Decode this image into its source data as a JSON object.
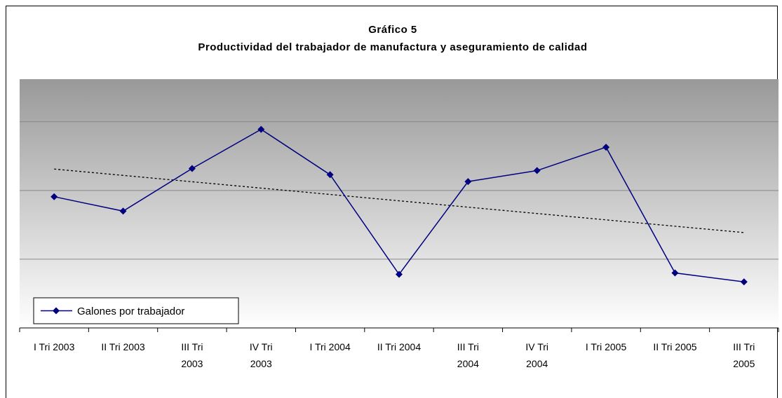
{
  "chart_data": {
    "type": "line",
    "title": "Gráfico 5",
    "subtitle": "Productividad del trabajador de manufactura y aseguramiento de calidad",
    "categories": [
      "I Tri 2003",
      "II Tri 2003",
      "III Tri\n2003",
      "IV  Tri\n2003",
      "I Tri 2004",
      "II Tri 2004",
      "III Tri\n2004",
      "IV  Tri\n2004",
      "I Tri 2005",
      "II Tri 2005",
      "III Tri\n2005"
    ],
    "series": [
      {
        "name": "Galones por trabajador",
        "color": "#000080",
        "values": [
          1.91,
          1.7,
          2.32,
          2.89,
          2.23,
          0.78,
          2.13,
          2.29,
          2.63,
          0.8,
          0.67
        ]
      }
    ],
    "trendline": "linear",
    "ylim": [
      0,
      3.62
    ],
    "yticks": [
      0,
      1,
      2,
      3
    ],
    "grid": true,
    "legend": "lower left"
  }
}
